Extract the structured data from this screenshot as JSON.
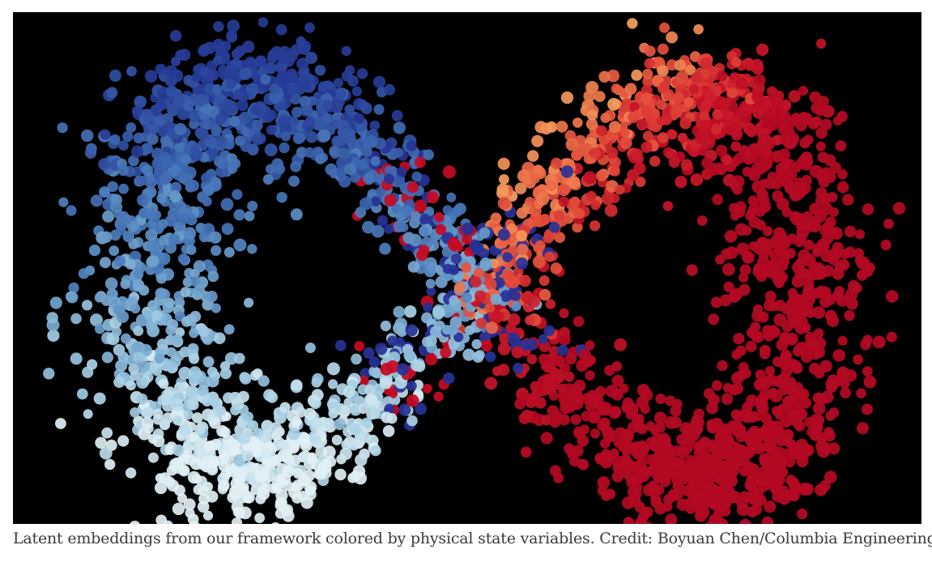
{
  "caption": "Latent embeddings from our framework colored by physical state variables. Credit: Boyuan Chen/Columbia Engineering"
}
